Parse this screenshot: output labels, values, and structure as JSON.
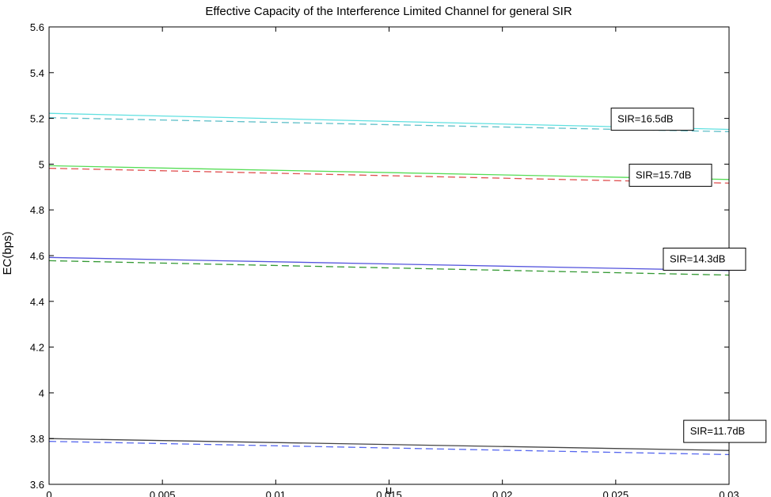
{
  "chart_data": {
    "type": "line",
    "title": "Effective Capacity of the Interference Limited Channel for general SIR",
    "xlabel": "u",
    "ylabel": "EC(bps)",
    "xlim": [
      0,
      0.03
    ],
    "ylim": [
      3.6,
      5.6
    ],
    "xticks": [
      0,
      0.005,
      0.01,
      0.015,
      0.02,
      0.025,
      0.03
    ],
    "xtick_labels": [
      "0",
      "0.005",
      "0.01",
      "0.015",
      "0.02",
      "0.025",
      "0.03"
    ],
    "yticks": [
      3.6,
      3.8,
      4,
      4.2,
      4.4,
      4.6,
      4.8,
      5,
      5.2,
      5.4,
      5.6
    ],
    "ytick_labels": [
      "3.6",
      "3.8",
      "4",
      "4.2",
      "4.4",
      "4.6",
      "4.8",
      "5",
      "5.2",
      "5.4",
      "5.6"
    ],
    "grid": false,
    "legend": "none",
    "series": [
      {
        "color": "#5fe0e0",
        "style": "solid",
        "x": [
          0,
          0.03
        ],
        "y": [
          5.222,
          5.152
        ]
      },
      {
        "color": "#5fbfc8",
        "style": "dashed",
        "x": [
          0,
          0.03
        ],
        "y": [
          5.203,
          5.142
        ]
      },
      {
        "color": "#55dd55",
        "style": "solid",
        "x": [
          0,
          0.03
        ],
        "y": [
          4.993,
          4.933
        ]
      },
      {
        "color": "#e05050",
        "style": "dashed",
        "x": [
          0,
          0.03
        ],
        "y": [
          4.982,
          4.917
        ]
      },
      {
        "color": "#5555dd",
        "style": "solid",
        "x": [
          0,
          0.03
        ],
        "y": [
          4.592,
          4.535
        ]
      },
      {
        "color": "#339933",
        "style": "dashed",
        "x": [
          0,
          0.03
        ],
        "y": [
          4.578,
          4.515
        ]
      },
      {
        "color": "#444444",
        "style": "solid",
        "x": [
          0,
          0.03
        ],
        "y": [
          3.8,
          3.748
        ]
      },
      {
        "color": "#5566ee",
        "style": "dashed",
        "x": [
          0,
          0.03
        ],
        "y": [
          3.788,
          3.73
        ]
      }
    ],
    "annotations": [
      {
        "text": "SIR=16.5dB",
        "x": 0.0248,
        "y": 5.245
      },
      {
        "text": "SIR=15.7dB",
        "x": 0.0256,
        "y": 5.0
      },
      {
        "text": "SIR=14.3dB",
        "x": 0.0271,
        "y": 4.633
      },
      {
        "text": "SIR=11.7dB",
        "x": 0.028,
        "y": 3.88
      }
    ]
  }
}
